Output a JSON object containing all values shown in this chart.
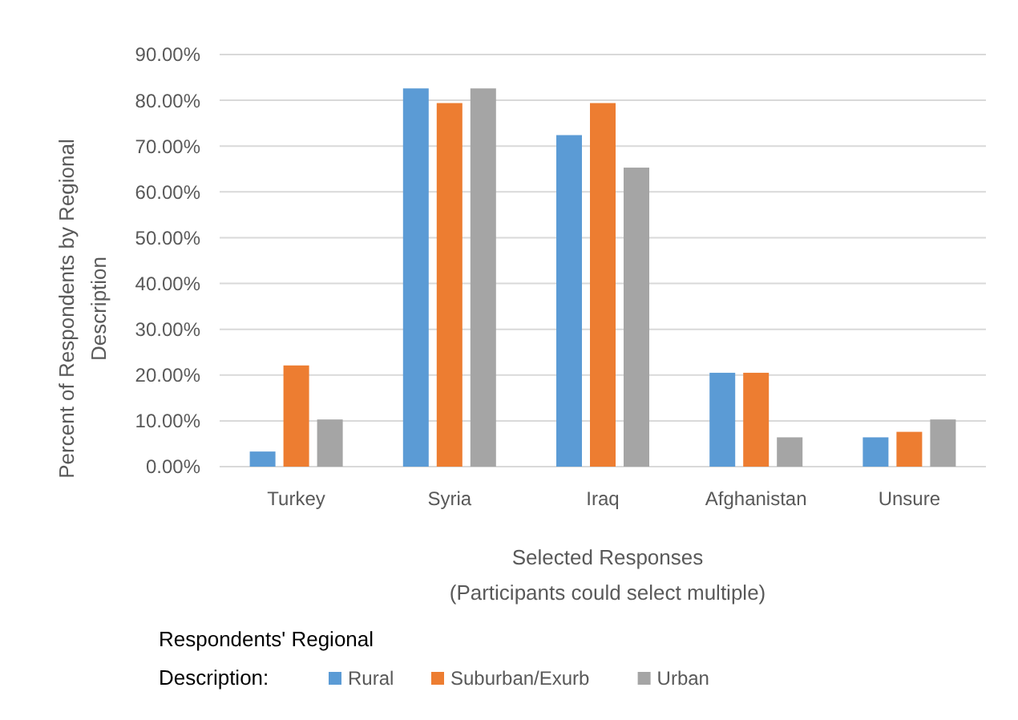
{
  "chart_data": {
    "type": "bar",
    "xlabel": "Selected Responses\n(Participants could select multiple)",
    "ylabel": "Percent of Respondents by Regional\nDescription",
    "legend_title": "Respondents' Regional\nDescription:",
    "categories": [
      "Turkey",
      "Syria",
      "Iraq",
      "Afghanistan",
      "Unsure"
    ],
    "series": [
      {
        "name": "Rural",
        "color": "#5b9bd5",
        "values": [
          3.3,
          82.6,
          72.4,
          20.5,
          6.4
        ]
      },
      {
        "name": "Suburban/Exurb",
        "color": "#ed7d31",
        "values": [
          22.1,
          79.4,
          79.4,
          20.5,
          7.6
        ]
      },
      {
        "name": "Urban",
        "color": "#a5a5a5",
        "values": [
          10.3,
          82.6,
          65.3,
          6.4,
          10.3
        ]
      }
    ],
    "ylim": [
      0,
      90
    ],
    "yticks": [
      {
        "value": 0,
        "label": "0.00%"
      },
      {
        "value": 10,
        "label": "10.00%"
      },
      {
        "value": 20,
        "label": "20.00%"
      },
      {
        "value": 30,
        "label": "30.00%"
      },
      {
        "value": 40,
        "label": "40.00%"
      },
      {
        "value": 50,
        "label": "50.00%"
      },
      {
        "value": 60,
        "label": "60.00%"
      },
      {
        "value": 70,
        "label": "70.00%"
      },
      {
        "value": 80,
        "label": "80.00%"
      },
      {
        "value": 90,
        "label": "90.00%"
      }
    ],
    "grid": "y",
    "legend": "bottom left"
  }
}
